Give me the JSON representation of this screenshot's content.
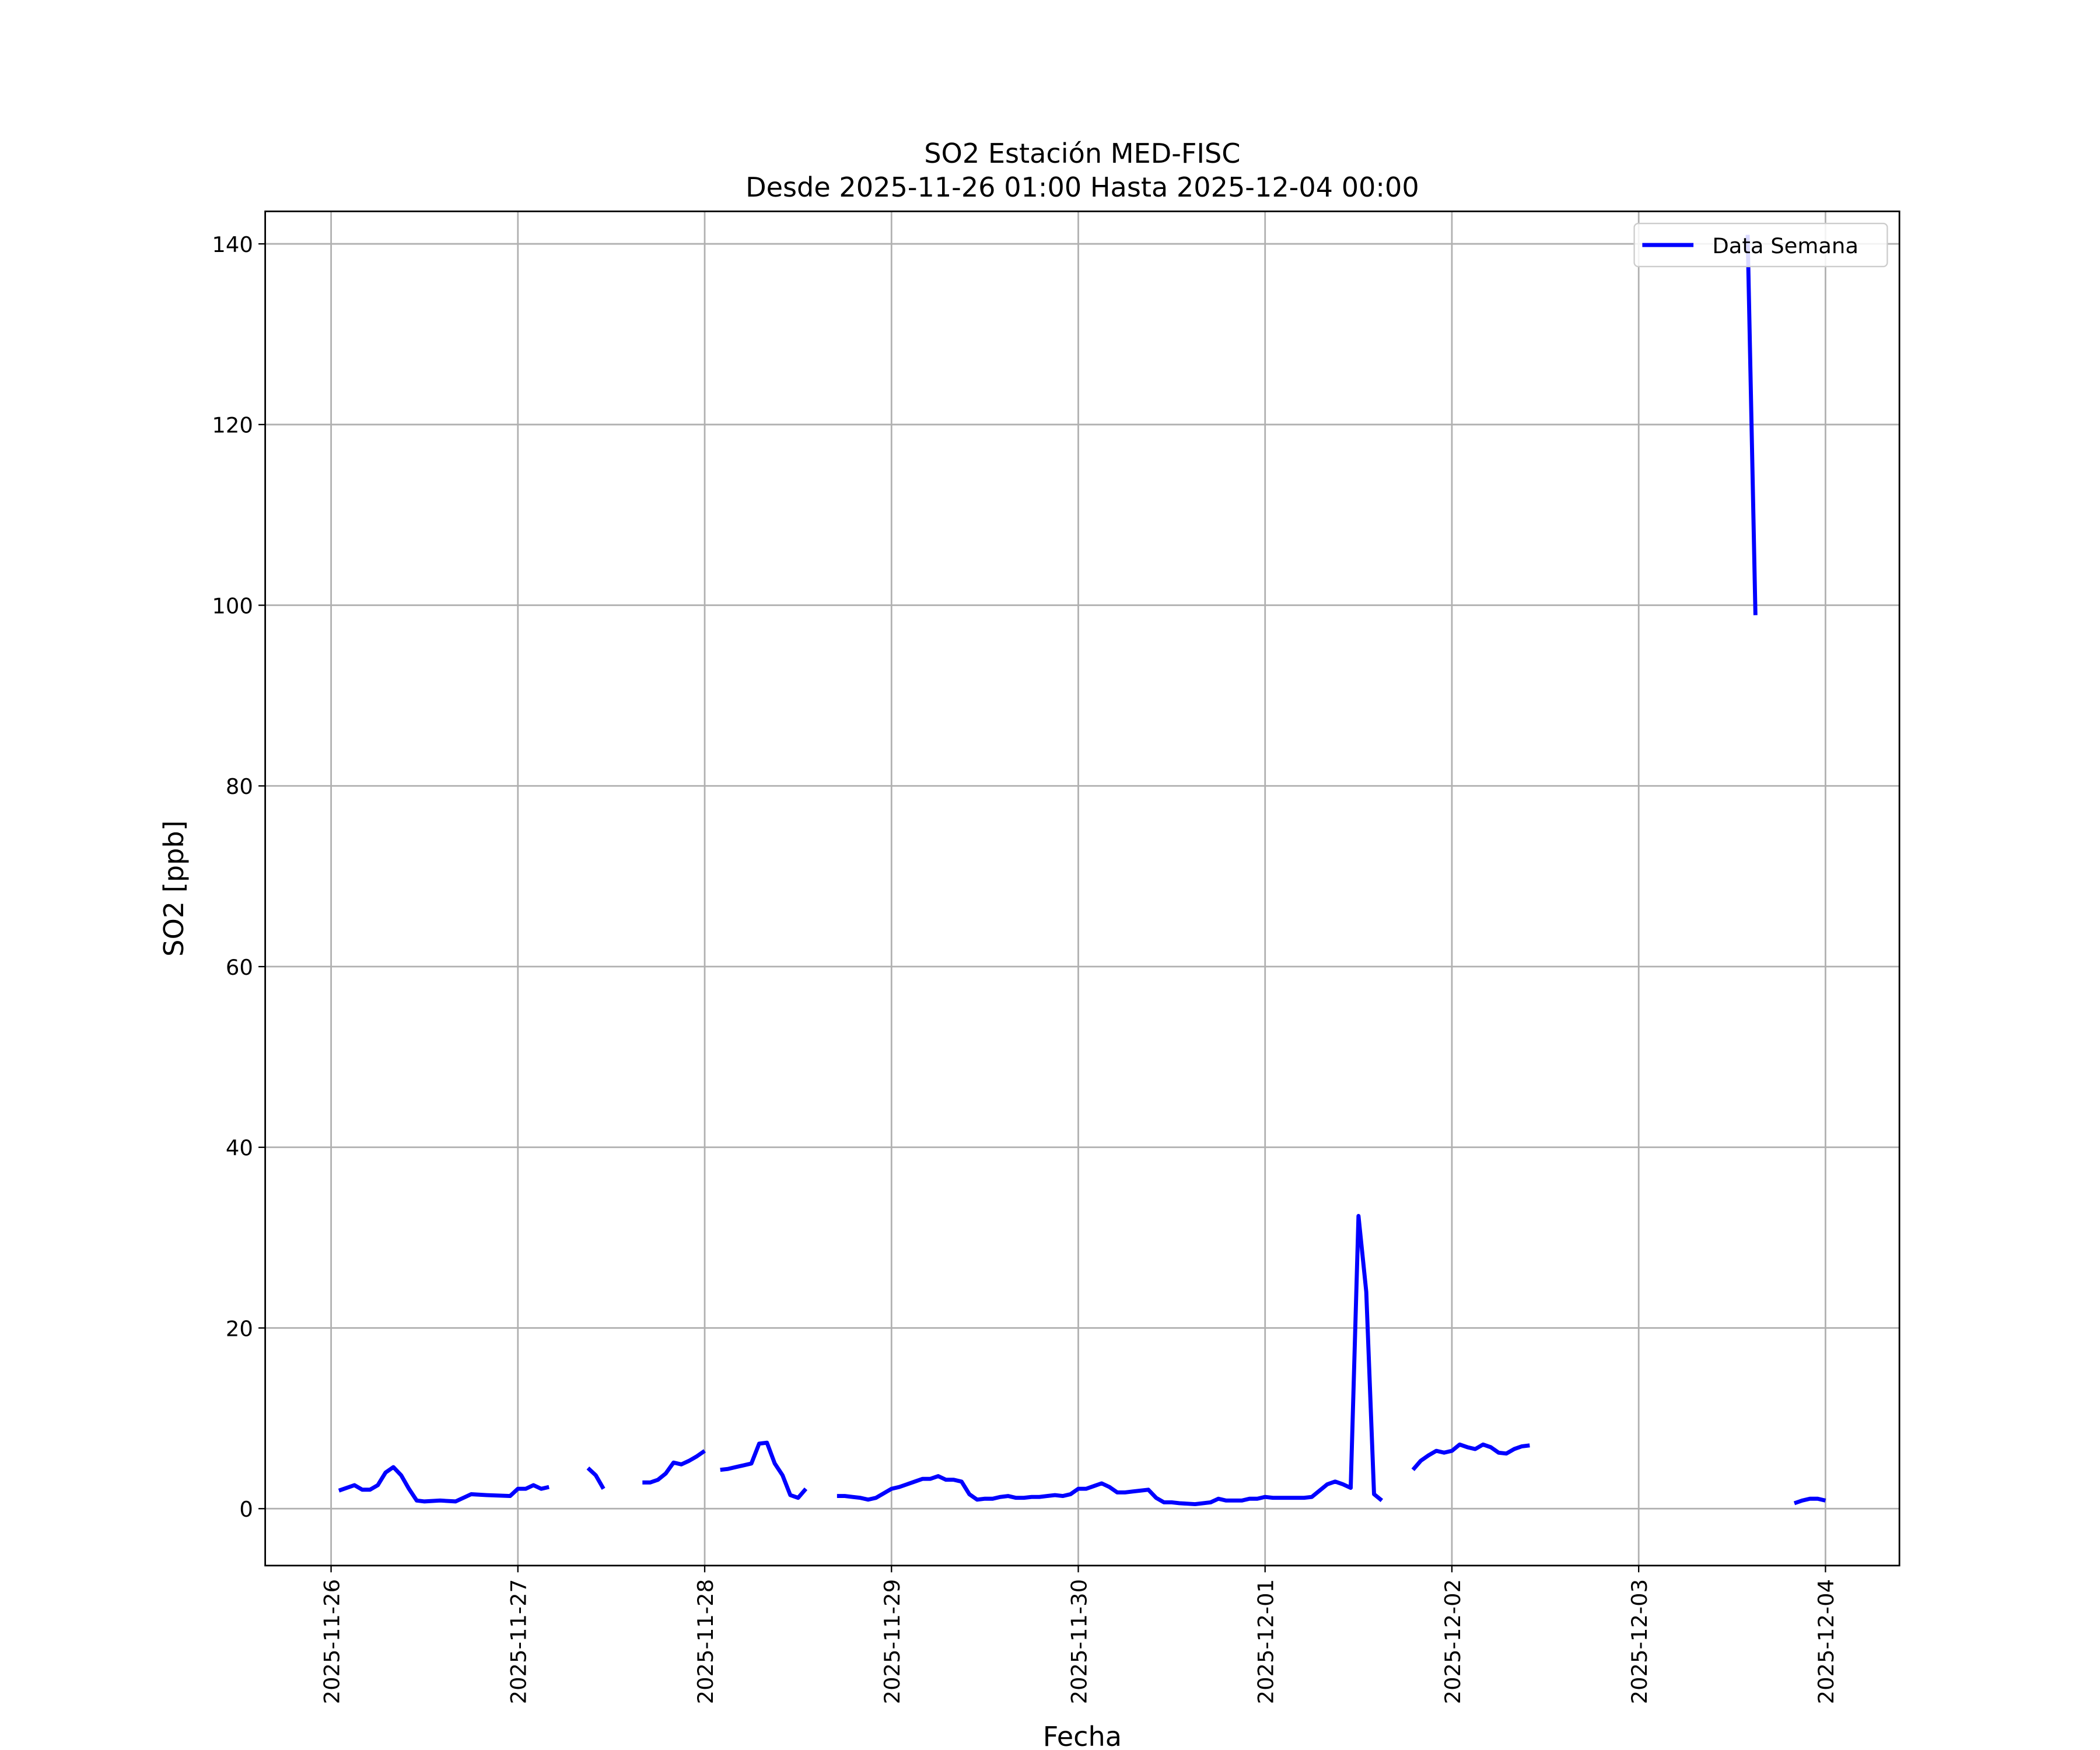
{
  "chart_data": {
    "type": "line",
    "title": "SO2 Estación MED-FISC",
    "subtitle": "Desde 2025-11-26 01:00 Hasta 2025-12-04 00:00",
    "x_label": "Fecha",
    "y_label": "SO2 [ppb]",
    "x": [
      "2025-11-26 01:00",
      "2025-11-26 03:00",
      "2025-11-26 04:00",
      "2025-11-26 05:00",
      "2025-11-26 06:00",
      "2025-11-26 07:00",
      "2025-11-26 08:00",
      "2025-11-26 09:00",
      "2025-11-26 10:00",
      "2025-11-26 11:00",
      "2025-11-26 12:00",
      "2025-11-26 14:00",
      "2025-11-26 16:00",
      "2025-11-26 18:00",
      "2025-11-26 20:00",
      "2025-11-26 23:00",
      "2025-11-27 00:00",
      "2025-11-27 01:00",
      "2025-11-27 02:00",
      "2025-11-27 03:00",
      "2025-11-27 04:00",
      "2025-11-27 05:00",
      "2025-11-27 09:00",
      "2025-11-27 10:00",
      "2025-11-27 11:00",
      "2025-11-27 12:00",
      "2025-11-27 16:00",
      "2025-11-27 17:00",
      "2025-11-27 18:00",
      "2025-11-27 19:00",
      "2025-11-27 20:00",
      "2025-11-27 21:00",
      "2025-11-27 22:00",
      "2025-11-27 23:00",
      "2025-11-28 00:00",
      "2025-11-28 01:00",
      "2025-11-28 02:00",
      "2025-11-28 03:00",
      "2025-11-28 04:00",
      "2025-11-28 05:00",
      "2025-11-28 06:00",
      "2025-11-28 07:00",
      "2025-11-28 08:00",
      "2025-11-28 09:00",
      "2025-11-28 10:00",
      "2025-11-28 11:00",
      "2025-11-28 12:00",
      "2025-11-28 13:00",
      "2025-11-28 14:00",
      "2025-11-28 17:00",
      "2025-11-28 18:00",
      "2025-11-28 19:00",
      "2025-11-28 20:00",
      "2025-11-28 21:00",
      "2025-11-28 22:00",
      "2025-11-28 23:00",
      "2025-11-29 00:00",
      "2025-11-29 01:00",
      "2025-11-29 02:00",
      "2025-11-29 03:00",
      "2025-11-29 04:00",
      "2025-11-29 05:00",
      "2025-11-29 06:00",
      "2025-11-29 07:00",
      "2025-11-29 08:00",
      "2025-11-29 09:00",
      "2025-11-29 10:00",
      "2025-11-29 11:00",
      "2025-11-29 12:00",
      "2025-11-29 13:00",
      "2025-11-29 14:00",
      "2025-11-29 15:00",
      "2025-11-29 16:00",
      "2025-11-29 17:00",
      "2025-11-29 18:00",
      "2025-11-29 19:00",
      "2025-11-29 20:00",
      "2025-11-29 21:00",
      "2025-11-29 22:00",
      "2025-11-29 23:00",
      "2025-11-30 00:00",
      "2025-11-30 01:00",
      "2025-11-30 02:00",
      "2025-11-30 03:00",
      "2025-11-30 04:00",
      "2025-11-30 05:00",
      "2025-11-30 06:00",
      "2025-11-30 07:00",
      "2025-11-30 08:00",
      "2025-11-30 09:00",
      "2025-11-30 10:00",
      "2025-11-30 11:00",
      "2025-11-30 12:00",
      "2025-11-30 13:00",
      "2025-11-30 15:00",
      "2025-11-30 17:00",
      "2025-11-30 18:00",
      "2025-11-30 19:00",
      "2025-11-30 21:00",
      "2025-11-30 22:00",
      "2025-11-30 23:00",
      "2025-12-01 00:00",
      "2025-12-01 01:00",
      "2025-12-01 03:00",
      "2025-12-01 05:00",
      "2025-12-01 06:00",
      "2025-12-01 07:00",
      "2025-12-01 08:00",
      "2025-12-01 09:00",
      "2025-12-01 10:00",
      "2025-12-01 11:00",
      "2025-12-01 12:00",
      "2025-12-01 13:00",
      "2025-12-01 14:00",
      "2025-12-01 15:00",
      "2025-12-01 16:00",
      "2025-12-01 19:00",
      "2025-12-01 20:00",
      "2025-12-01 21:00",
      "2025-12-01 22:00",
      "2025-12-01 23:00",
      "2025-12-02 00:00",
      "2025-12-02 01:00",
      "2025-12-02 02:00",
      "2025-12-02 03:00",
      "2025-12-02 04:00",
      "2025-12-02 05:00",
      "2025-12-02 06:00",
      "2025-12-02 07:00",
      "2025-12-02 08:00",
      "2025-12-02 09:00",
      "2025-12-02 10:00",
      "2025-12-02 11:00",
      "2025-12-03 14:00",
      "2025-12-03 15:00",
      "2025-12-03 16:00",
      "2025-12-03 20:00",
      "2025-12-03 21:00",
      "2025-12-03 22:00",
      "2025-12-03 23:00",
      "2025-12-04 00:00"
    ],
    "series": [
      {
        "name": "Data Semana",
        "color": "#0000ff",
        "values": [
          2.0,
          2.6,
          2.1,
          2.1,
          2.6,
          4.0,
          4.6,
          3.7,
          2.2,
          0.9,
          0.8,
          0.9,
          0.8,
          1.6,
          1.5,
          1.4,
          2.2,
          2.2,
          2.6,
          2.2,
          2.4,
          null,
          4.5,
          3.7,
          2.2,
          null,
          2.9,
          2.9,
          3.2,
          3.9,
          5.1,
          4.9,
          5.3,
          5.8,
          6.4,
          null,
          4.3,
          4.4,
          4.6,
          4.8,
          5.0,
          7.2,
          7.3,
          5.0,
          3.7,
          1.5,
          1.2,
          2.2,
          null,
          1.4,
          1.4,
          1.3,
          1.2,
          1.0,
          1.2,
          1.7,
          2.2,
          2.4,
          2.7,
          3.0,
          3.3,
          3.3,
          3.6,
          3.2,
          3.2,
          3.0,
          1.6,
          1.0,
          1.1,
          1.1,
          1.3,
          1.4,
          1.2,
          1.2,
          1.3,
          1.3,
          1.4,
          1.5,
          1.4,
          1.6,
          2.2,
          2.2,
          2.5,
          2.8,
          2.4,
          1.8,
          1.8,
          1.9,
          2.0,
          2.1,
          1.2,
          0.7,
          0.7,
          0.6,
          0.5,
          0.7,
          1.1,
          0.9,
          0.9,
          1.1,
          1.1,
          1.3,
          1.2,
          1.2,
          1.2,
          1.3,
          2.0,
          2.7,
          3.0,
          2.7,
          2.3,
          32.4,
          24.0,
          1.6,
          0.9,
          null,
          4.3,
          5.3,
          5.9,
          6.4,
          6.2,
          6.4,
          7.1,
          6.8,
          6.6,
          7.1,
          6.8,
          6.2,
          6.1,
          6.6,
          6.9,
          7.0,
          null,
          141,
          98.9,
          null,
          0.6,
          0.9,
          1.1,
          1.1,
          0.9
        ]
      }
    ],
    "xlim": [
      "2025-11-25 15:32",
      "2025-12-04 09:30"
    ],
    "xticks": [
      "2025-11-26",
      "2025-11-27",
      "2025-11-28",
      "2025-11-29",
      "2025-11-30",
      "2025-12-01",
      "2025-12-02",
      "2025-12-03",
      "2025-12-04"
    ],
    "ylim": [
      -6.3,
      143.6
    ],
    "yticks": [
      0,
      20,
      40,
      60,
      80,
      100,
      120,
      140
    ],
    "grid": true,
    "legend": "upper right"
  }
}
